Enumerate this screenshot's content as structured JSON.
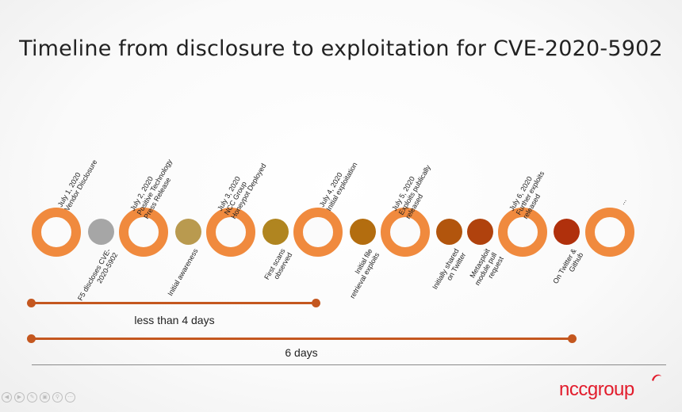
{
  "title": "Timeline from disclosure to exploitation for CVE-2020-5902",
  "milestones": [
    {
      "label_lines": [
        "July 1, 2020",
        "Vendor Disclosure"
      ]
    },
    {
      "label_lines": [
        "July 2, 2020",
        "Positive Technology",
        "Press Release"
      ]
    },
    {
      "label_lines": [
        "July 3, 2020",
        "NCC Group",
        "Honeypot Deployed"
      ]
    },
    {
      "label_lines": [
        "July 4, 2020",
        "Initial exploitation"
      ]
    },
    {
      "label_lines": [
        "July 5, 2020",
        "Exploits publically",
        "released"
      ]
    },
    {
      "label_lines": [
        "July 6, 2020",
        "Further exploits",
        "released"
      ]
    },
    {
      "label_lines": [
        "..."
      ]
    }
  ],
  "events": [
    {
      "color": "#a6a6a6",
      "label_lines": [
        "F5 discloses CVE-",
        "2020-5902"
      ]
    },
    {
      "color": "#b99a4f",
      "label_lines": [
        "Initial awareness"
      ]
    },
    {
      "color": "#b08520",
      "label_lines": [
        "First scans",
        "observed"
      ]
    },
    {
      "color": "#b36d0f",
      "label_lines": [
        "Initial file",
        "retrieval exploits"
      ]
    },
    {
      "color": "#b2550d",
      "label_lines": [
        "Initially shared",
        "on Twitter"
      ]
    },
    {
      "color": "#b0420d",
      "label_lines": [
        "Metasploit",
        "module pull",
        "request"
      ]
    },
    {
      "color": "#b0300c",
      "label_lines": [
        "On Twitter &",
        "Github"
      ]
    }
  ],
  "spans": [
    {
      "label": "less than 4 days"
    },
    {
      "label": "6 days"
    }
  ],
  "brand": {
    "name": "nccgroup"
  },
  "colors": {
    "ring": "#f08a3e",
    "bar": "#c4571f",
    "brand": "#e21c2c"
  },
  "toolbar_icons": [
    "arrow-left-icon",
    "arrow-right-icon",
    "pen-icon",
    "view-icon",
    "zoom-icon",
    "more-icon"
  ]
}
